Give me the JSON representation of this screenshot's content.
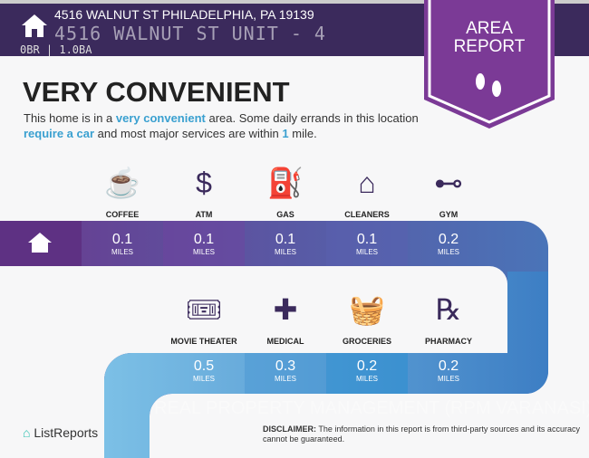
{
  "header": {
    "address": "4516 WALNUT ST PHILADELPHIA, PA 19139",
    "unit_overlay": "4516 WALNUT ST UNIT - 4",
    "beds_baths": "0BR | 1.0BA"
  },
  "badge": {
    "line1": "AREA",
    "line2": "REPORT"
  },
  "title": "VERY CONVENIENT",
  "description": {
    "p1": "This home is in a ",
    "h1": "very convenient",
    "p2": " area. Some daily errands in this location ",
    "h2": "require a car",
    "p3": " and most major services are within ",
    "h3": "1",
    "p4": " mile."
  },
  "row1": [
    {
      "label": "COFFEE",
      "value": "0.1",
      "unit": "MILES",
      "icon": "coffee-icon"
    },
    {
      "label": "ATM",
      "value": "0.1",
      "unit": "MILES",
      "icon": "dollar-icon"
    },
    {
      "label": "GAS",
      "value": "0.1",
      "unit": "MILES",
      "icon": "gas-pump-icon"
    },
    {
      "label": "CLEANERS",
      "value": "0.1",
      "unit": "MILES",
      "icon": "hanger-icon"
    },
    {
      "label": "GYM",
      "value": "0.2",
      "unit": "MILES",
      "icon": "dumbbell-icon"
    }
  ],
  "row2": [
    {
      "label": "MOVIE THEATER",
      "value": "0.5",
      "unit": "MILES",
      "icon": "ticket-icon"
    },
    {
      "label": "MEDICAL",
      "value": "0.3",
      "unit": "MILES",
      "icon": "cross-icon"
    },
    {
      "label": "GROCERIES",
      "value": "0.2",
      "unit": "MILES",
      "icon": "basket-icon"
    },
    {
      "label": "PHARMACY",
      "value": "0.2",
      "unit": "MILES",
      "icon": "rx-icon"
    }
  ],
  "footer": {
    "logo": "ListReports",
    "disclaimer_label": "DISCLAIMER:",
    "disclaimer": " The information in this report is from third-party sources and its accuracy cannot be guaranteed."
  },
  "watermark": "REAL PROPERTY MANAGEMENT (RPM VARANASI)"
}
